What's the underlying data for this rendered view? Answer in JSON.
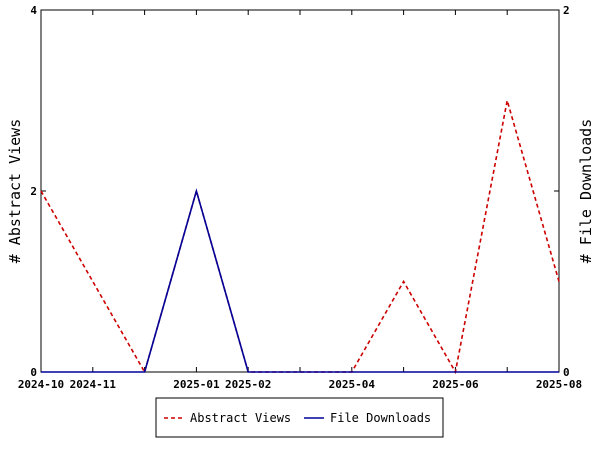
{
  "chart_data": {
    "type": "line",
    "x": [
      "2024-10",
      "2024-11",
      "2024-12",
      "2025-01",
      "2025-02",
      "2025-03",
      "2025-04",
      "2025-05",
      "2025-06",
      "2025-07",
      "2025-08"
    ],
    "x_tick_labels": [
      "2024-10",
      "2024-11",
      "2025-01",
      "2025-02",
      "2025-04",
      "2025-06",
      "2025-08"
    ],
    "series": [
      {
        "name": "Abstract Views",
        "axis": "left",
        "color": "#cc0000",
        "style": "dashed",
        "values": [
          2,
          1,
          0,
          2,
          0,
          0,
          0,
          1,
          0,
          3,
          1
        ]
      },
      {
        "name": "File Downloads",
        "axis": "right",
        "color": "#000099",
        "style": "solid",
        "values": [
          0,
          0,
          0,
          1,
          0,
          0,
          0,
          0,
          0,
          0,
          0
        ]
      }
    ],
    "ylabel_left": "# Abstract Views",
    "ylabel_right": "# File Downloads",
    "ylim_left": [
      0,
      4
    ],
    "ylim_right": [
      0,
      2
    ],
    "yticks_left": [
      "0",
      "2",
      "4"
    ],
    "yticks_right": [
      "0",
      "1",
      "2"
    ],
    "grid": false,
    "legend_position": "bottom"
  }
}
